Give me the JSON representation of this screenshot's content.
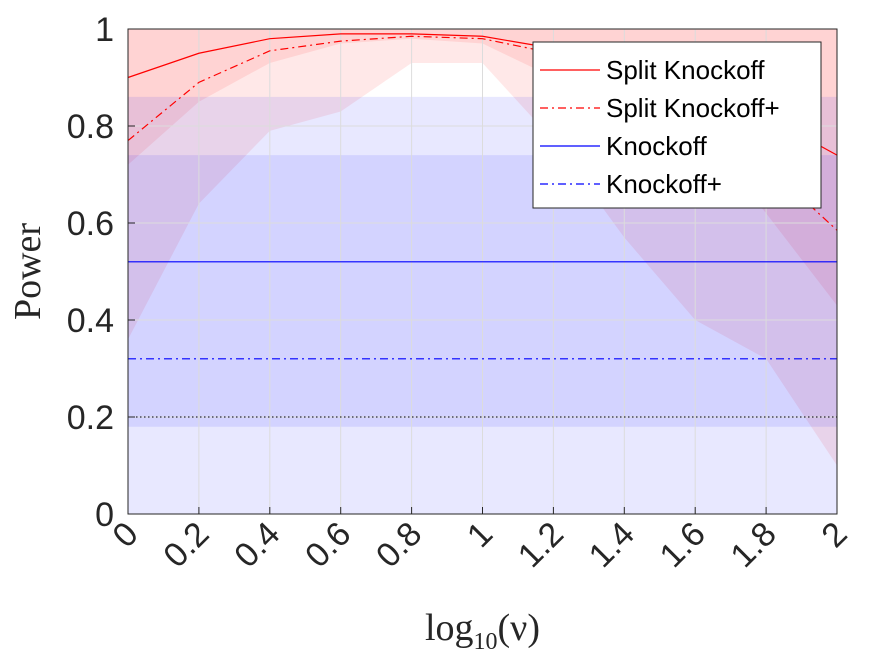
{
  "chart_data": {
    "type": "line",
    "xlabel": "log10(ν)",
    "xlabel_base": "log",
    "xlabel_sub": "10",
    "xlabel_arg": "(ν)",
    "ylabel": "Power",
    "xlim": [
      0,
      2
    ],
    "ylim": [
      0,
      1
    ],
    "xticks": [
      0,
      0.2,
      0.4,
      0.6,
      0.8,
      1,
      1.2,
      1.4,
      1.6,
      1.8,
      2
    ],
    "xtick_labels": [
      "0",
      "0.2",
      "0.4",
      "0.6",
      "0.8",
      "1",
      "1.2",
      "1.4",
      "1.6",
      "1.8",
      "2"
    ],
    "yticks": [
      0,
      0.2,
      0.4,
      0.6,
      0.8,
      1
    ],
    "ytick_labels": [
      "0",
      "0.2",
      "0.4",
      "0.6",
      "0.8",
      "1"
    ],
    "grid": true,
    "legend_position": "top-right",
    "x": [
      0,
      0.2,
      0.4,
      0.6,
      0.8,
      1,
      1.2,
      1.4,
      1.6,
      1.8,
      2
    ],
    "series": [
      {
        "name": "Split Knockoff",
        "color": "#ff0000",
        "dash": "solid",
        "values": [
          0.9,
          0.95,
          0.98,
          0.99,
          0.99,
          0.985,
          0.96,
          0.93,
          0.88,
          0.82,
          0.74
        ],
        "band_low": [
          0.72,
          0.85,
          0.93,
          0.97,
          0.98,
          0.97,
          0.9,
          0.86,
          0.8,
          0.62,
          0.43
        ],
        "band_high": [
          1,
          1,
          1,
          1,
          1,
          1,
          1,
          1,
          1,
          1,
          1
        ]
      },
      {
        "name": "Split Knockoff+",
        "color": "#ff0000",
        "dash": "dashdot",
        "values": [
          0.77,
          0.89,
          0.955,
          0.975,
          0.985,
          0.98,
          0.95,
          0.9,
          0.82,
          0.72,
          0.585
        ],
        "band_low": [
          0.36,
          0.64,
          0.79,
          0.83,
          0.93,
          0.93,
          0.77,
          0.57,
          0.4,
          0.32,
          0.1
        ],
        "band_high": [
          1,
          1,
          1,
          1,
          1,
          1,
          1,
          1,
          1,
          1,
          1
        ]
      },
      {
        "name": "Knockoff",
        "color": "#0000ff",
        "dash": "solid",
        "values": [
          0.52,
          0.52,
          0.52,
          0.52,
          0.52,
          0.52,
          0.52,
          0.52,
          0.52,
          0.52,
          0.52
        ],
        "band_low": [
          0.18,
          0.18,
          0.18,
          0.18,
          0.18,
          0.18,
          0.18,
          0.18,
          0.18,
          0.18,
          0.18
        ],
        "band_high": [
          0.86,
          0.86,
          0.86,
          0.86,
          0.86,
          0.86,
          0.86,
          0.86,
          0.86,
          0.86,
          0.86
        ]
      },
      {
        "name": "Knockoff+",
        "color": "#0000ff",
        "dash": "dashdot",
        "values": [
          0.32,
          0.32,
          0.32,
          0.32,
          0.32,
          0.32,
          0.32,
          0.32,
          0.32,
          0.32,
          0.32
        ],
        "band_low": [
          0,
          0,
          0,
          0,
          0,
          0,
          0,
          0,
          0,
          0,
          0
        ],
        "band_high": [
          0.74,
          0.74,
          0.74,
          0.74,
          0.74,
          0.74,
          0.74,
          0.74,
          0.74,
          0.74,
          0.74
        ]
      }
    ],
    "reference_lines": [
      {
        "y": 0.2,
        "color": "#000000",
        "dash": "dotted"
      }
    ]
  }
}
